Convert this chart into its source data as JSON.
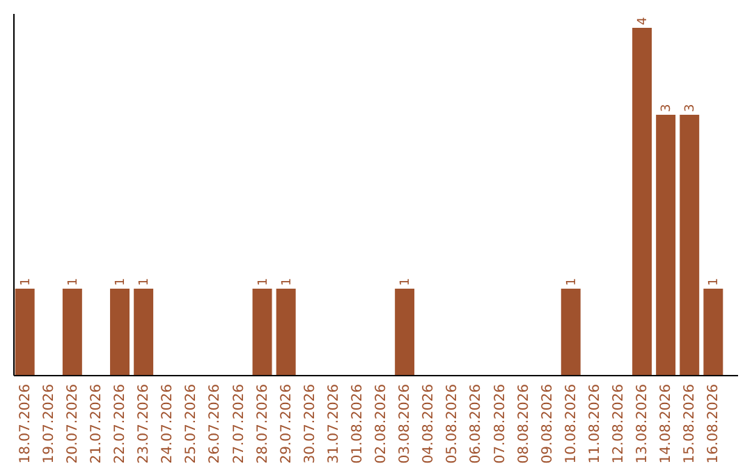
{
  "chart_data": {
    "type": "bar",
    "categories": [
      "18.07.2026",
      "19.07.2026",
      "20.07.2026",
      "21.07.2026",
      "22.07.2026",
      "23.07.2026",
      "24.07.2026",
      "25.07.2026",
      "26.07.2026",
      "27.07.2026",
      "28.07.2026",
      "29.07.2026",
      "30.07.2026",
      "31.07.2026",
      "01.08.2026",
      "02.08.2026",
      "03.08.2026",
      "04.08.2026",
      "05.08.2026",
      "06.08.2026",
      "07.08.2026",
      "08.08.2026",
      "09.08.2026",
      "10.08.2026",
      "11.08.2026",
      "12.08.2026",
      "13.08.2026",
      "14.08.2026",
      "15.08.2026",
      "16.08.2026"
    ],
    "values": [
      1,
      0,
      1,
      0,
      1,
      1,
      0,
      0,
      0,
      0,
      1,
      1,
      0,
      0,
      0,
      0,
      1,
      0,
      0,
      0,
      0,
      0,
      0,
      1,
      0,
      0,
      4,
      3,
      3,
      1
    ],
    "value_labels": [
      "1",
      null,
      "1",
      null,
      "1",
      "1",
      null,
      null,
      null,
      null,
      "1",
      "1",
      null,
      null,
      null,
      null,
      "1",
      null,
      null,
      null,
      null,
      null,
      null,
      "1",
      null,
      null,
      "4",
      "3",
      "3",
      "1"
    ],
    "color": "#a0522d"
  }
}
